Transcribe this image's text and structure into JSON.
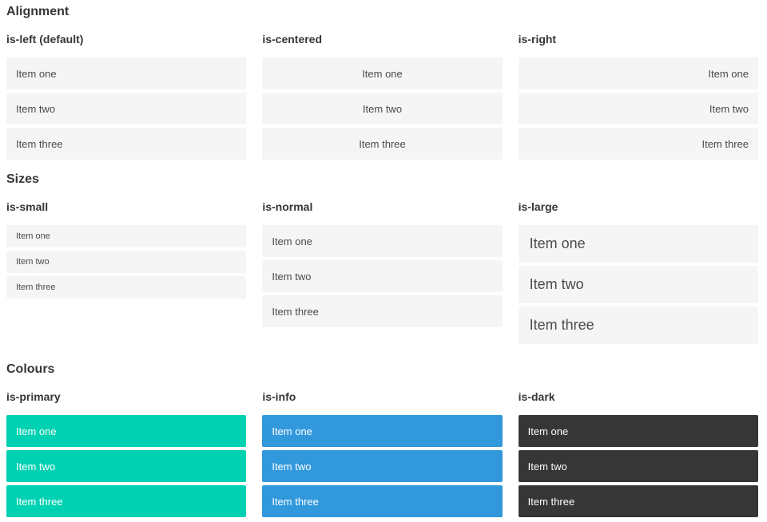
{
  "theme": {
    "primary": "#00d1b2",
    "info": "#3298dc",
    "dark": "#363636",
    "item_background": "#f5f5f5",
    "item_text": "#4a4a4a",
    "heading_text": "#363636",
    "colored_item_text": "#ffffff",
    "page_background": "#ffffff"
  },
  "sections": [
    {
      "title": "Alignment",
      "columns": [
        {
          "label": "is-left (default)",
          "items": [
            "Item one",
            "Item two",
            "Item three"
          ]
        },
        {
          "label": "is-centered",
          "items": [
            "Item one",
            "Item two",
            "Item three"
          ]
        },
        {
          "label": "is-right",
          "items": [
            "Item one",
            "Item two",
            "Item three"
          ]
        }
      ]
    },
    {
      "title": "Sizes",
      "columns": [
        {
          "label": "is-small",
          "items": [
            "Item one",
            "Item two",
            "Item three"
          ]
        },
        {
          "label": "is-normal",
          "items": [
            "Item one",
            "Item two",
            "Item three"
          ]
        },
        {
          "label": "is-large",
          "items": [
            "Item one",
            "Item two",
            "Item three"
          ]
        }
      ]
    },
    {
      "title": "Colours",
      "columns": [
        {
          "label": "is-primary",
          "items": [
            "Item one",
            "Item two",
            "Item three"
          ]
        },
        {
          "label": "is-info",
          "items": [
            "Item one",
            "Item two",
            "Item three"
          ]
        },
        {
          "label": "is-dark",
          "items": [
            "Item one",
            "Item two",
            "Item three"
          ]
        }
      ]
    }
  ]
}
